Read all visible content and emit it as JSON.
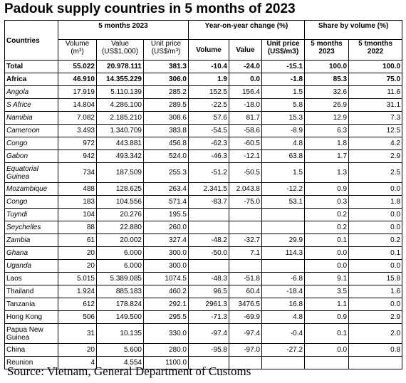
{
  "title": "Padouk supply countries in 5 months of 2023",
  "table": {
    "header": [
      [
        "Countries",
        "5 months 2023",
        "Year-on-year change (%)",
        "Share by volume (%)"
      ],
      [
        "Volume (m³)",
        "Value (US$1,000)",
        "Unit price (US$/m³)",
        "Volume",
        "Value",
        "Unit price (US$/m3)",
        "5 months 2023",
        "5 tmonths 2022"
      ]
    ],
    "rows": [
      [
        "Total",
        "55.022",
        "20.978.111",
        "381.3",
        "-10.4",
        "-24.0",
        "-15.1",
        "100.0",
        "100.0"
      ],
      [
        "Africa",
        "46.910",
        "14.355.229",
        "306.0",
        "1.9",
        "0.0",
        "-1.8",
        "85.3",
        "75.0"
      ],
      [
        "Angola",
        "17.919",
        "5.110.139",
        "285.2",
        "152.5",
        "156.4",
        "1.5",
        "32.6",
        "11.6"
      ],
      [
        "S Africe",
        "14.804",
        "4.286.100",
        "289.5",
        "-22.5",
        "-18.0",
        "5.8",
        "26.9",
        "31.1"
      ],
      [
        "Namibia",
        "7.082",
        "2.185.210",
        "308.6",
        "57.6",
        "81.7",
        "15.3",
        "12.9",
        "7.3"
      ],
      [
        "Cameroon",
        "3.493",
        "1.340.709",
        "383.8",
        "-54.5",
        "-58.6",
        "-8.9",
        "6.3",
        "12.5"
      ],
      [
        "Congo",
        "972",
        "443.881",
        "456.8",
        "-62.3",
        "-60.5",
        "4.8",
        "1.8",
        "4.2"
      ],
      [
        "Gabon",
        "942",
        "493.342",
        "524.0",
        "-46.3",
        "-12.1",
        "63.8",
        "1.7",
        "2.9"
      ],
      [
        "Equatorial Guinea",
        "734",
        "187.509",
        "255.3",
        "-51.2",
        "-50.5",
        "1.5",
        "1.3",
        "2.5"
      ],
      [
        "Mozambique",
        "488",
        "128.625",
        "263.4",
        "2.341.5",
        "2.043.8",
        "-12.2",
        "0.9",
        "0.0"
      ],
      [
        "Congo",
        "183",
        "104.556",
        "571.4",
        "-83.7",
        "-75.0",
        "53.1",
        "0.3",
        "1.8"
      ],
      [
        "Tuyndi",
        "104",
        "20.276",
        "195.5",
        null,
        null,
        null,
        "0.2",
        "0.0"
      ],
      [
        "Seychelles",
        "88",
        "22.880",
        "260.0",
        null,
        null,
        null,
        "0.2",
        "0.0"
      ],
      [
        "Zambia",
        "61",
        "20.002",
        "327.4",
        "-48.2",
        "-32.7",
        "29.9",
        "0.1",
        "0.2"
      ],
      [
        "Ghana",
        "20",
        "6.000",
        "300.0",
        "-50.0",
        "7.1",
        "114.3",
        "0.0",
        "0.1"
      ],
      [
        "Uganda",
        "20",
        "6.000",
        "300.0",
        null,
        null,
        null,
        "0.0",
        "0.0"
      ],
      [
        "Laos",
        "5.015",
        "5.389.085",
        "1074.5",
        "-48.3",
        "-51.8",
        "-6.8",
        "9.1",
        "15.8"
      ],
      [
        "Thailand",
        "1.924",
        "885.183",
        "460.2",
        "96.5",
        "60.4",
        "-18.4",
        "3.5",
        "1.6"
      ],
      [
        "Tanzania",
        "612",
        "178.824",
        "292.1",
        "2961.3",
        "3476.5",
        "16.8",
        "1.1",
        "0.0"
      ],
      [
        "Hong Kong",
        "506",
        "149.500",
        "295.5",
        "-71.3",
        "-69.9",
        "4.8",
        "0.9",
        "2.9"
      ],
      [
        "Papua New Guinea",
        "31",
        "10.135",
        "330.0",
        "-97.4",
        "-97.4",
        "-0.4",
        "0.1",
        "2.0"
      ],
      [
        "China",
        "20",
        "5.600",
        "280.0",
        "-95.8",
        "-97.0",
        "-27.2",
        "0.0",
        "0.8"
      ],
      [
        "Reunion",
        "4",
        "4.554",
        "1100.0",
        null,
        null,
        null,
        null,
        null
      ]
    ]
  },
  "source": "Source: Vietnam, General Department of Customs"
}
